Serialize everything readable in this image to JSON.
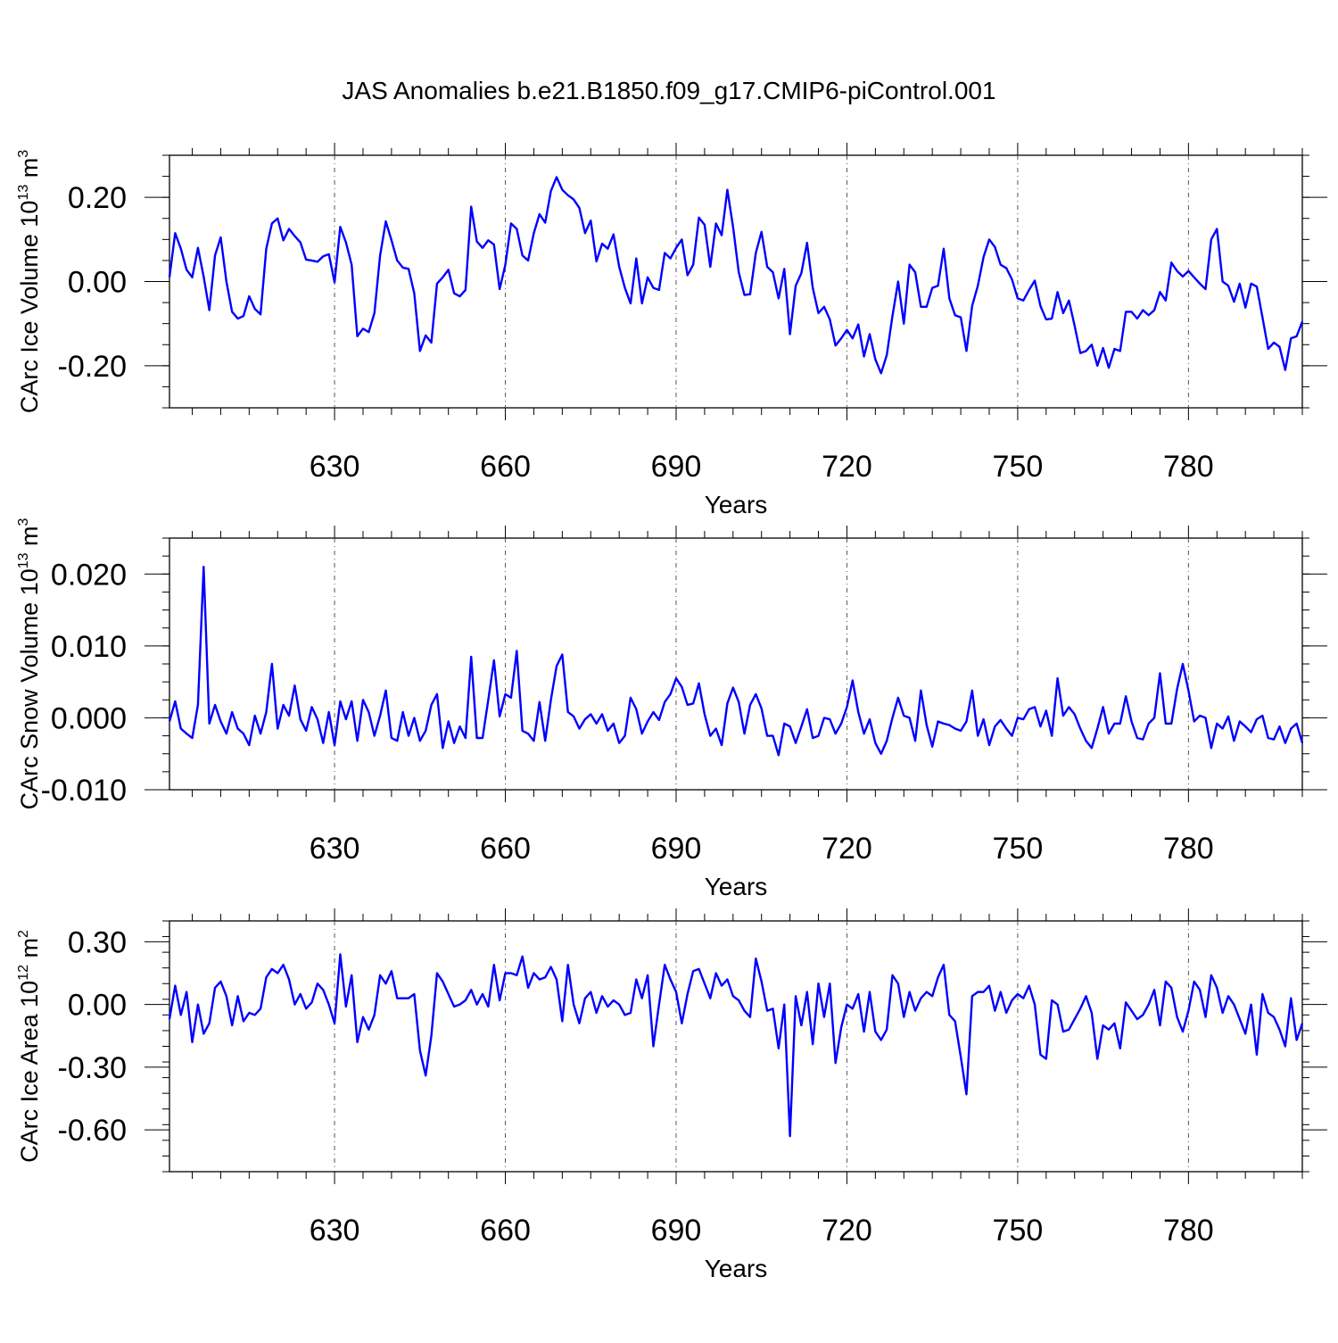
{
  "chart_data": [
    {
      "type": "line",
      "title": "JAS Anomalies b.e21.B1850.f09_g17.CMIP6-piControl.001",
      "ylabel": "CArc Ice Volume 10",
      "ylabel_exp": "13",
      "ylabel_unit": " m",
      "ylabel_unit_exp": "3",
      "xlabel": "Years",
      "x_start": 601,
      "xlim": [
        601,
        800
      ],
      "ylim": [
        -0.3,
        0.3
      ],
      "yticks": [
        -0.2,
        0.0,
        0.2
      ],
      "ytick_labels": [
        "-0.20",
        "0.00",
        "0.20"
      ],
      "xticks": [
        630,
        660,
        690,
        720,
        750,
        780
      ],
      "xtick_labels": [
        "630",
        "660",
        "690",
        "720",
        "750",
        "780"
      ],
      "line_color": "#0000ff",
      "values": [
        0.01,
        0.115,
        0.078,
        0.028,
        0.01,
        0.08,
        0.012,
        -0.068,
        0.062,
        0.105,
        0.0,
        -0.072,
        -0.088,
        -0.082,
        -0.035,
        -0.065,
        -0.078,
        0.078,
        0.138,
        0.15,
        0.098,
        0.125,
        0.108,
        0.093,
        0.052,
        0.05,
        0.047,
        0.06,
        0.065,
        -0.002,
        0.13,
        0.093,
        0.04,
        -0.13,
        -0.112,
        -0.12,
        -0.075,
        0.062,
        0.143,
        0.098,
        0.05,
        0.033,
        0.03,
        -0.028,
        -0.165,
        -0.128,
        -0.145,
        -0.005,
        0.01,
        0.028,
        -0.028,
        -0.035,
        -0.02,
        0.178,
        0.095,
        0.08,
        0.098,
        0.088,
        -0.018,
        0.04,
        0.138,
        0.125,
        0.062,
        0.05,
        0.115,
        0.16,
        0.14,
        0.215,
        0.248,
        0.218,
        0.205,
        0.195,
        0.175,
        0.115,
        0.145,
        0.048,
        0.09,
        0.078,
        0.112,
        0.035,
        -0.015,
        -0.052,
        0.055,
        -0.052,
        0.01,
        -0.015,
        -0.02,
        0.068,
        0.055,
        0.08,
        0.1,
        0.015,
        0.04,
        0.152,
        0.135,
        0.035,
        0.138,
        0.11,
        0.218,
        0.13,
        0.022,
        -0.032,
        -0.03,
        0.068,
        0.118,
        0.035,
        0.022,
        -0.04,
        0.03,
        -0.125,
        -0.01,
        0.02,
        0.092,
        -0.015,
        -0.075,
        -0.06,
        -0.09,
        -0.152,
        -0.135,
        -0.115,
        -0.135,
        -0.102,
        -0.178,
        -0.125,
        -0.185,
        -0.218,
        -0.175,
        -0.082,
        0.0,
        -0.1,
        0.04,
        0.022,
        -0.06,
        -0.06,
        -0.015,
        -0.01,
        0.078,
        -0.04,
        -0.08,
        -0.085,
        -0.165,
        -0.058,
        -0.01,
        0.058,
        0.1,
        0.082,
        0.04,
        0.032,
        0.005,
        -0.04,
        -0.045,
        -0.02,
        0.002,
        -0.058,
        -0.09,
        -0.088,
        -0.025,
        -0.075,
        -0.045,
        -0.105,
        -0.17,
        -0.165,
        -0.15,
        -0.2,
        -0.158,
        -0.205,
        -0.16,
        -0.165,
        -0.072,
        -0.072,
        -0.088,
        -0.068,
        -0.08,
        -0.068,
        -0.025,
        -0.045,
        0.045,
        0.025,
        0.012,
        0.025,
        0.01,
        -0.005,
        -0.018,
        0.1,
        0.125,
        0.0,
        -0.01,
        -0.048,
        -0.005,
        -0.062,
        -0.005,
        -0.012,
        -0.085,
        -0.16,
        -0.145,
        -0.155,
        -0.21,
        -0.135,
        -0.13,
        -0.095
      ]
    },
    {
      "type": "line",
      "ylabel": "CArc Snow Volume 10",
      "ylabel_exp": "13",
      "ylabel_unit": " m",
      "ylabel_unit_exp": "3",
      "xlabel": "Years",
      "x_start": 601,
      "xlim": [
        601,
        800
      ],
      "ylim": [
        -0.01,
        0.025
      ],
      "yticks": [
        -0.01,
        0.0,
        0.01,
        0.02
      ],
      "ytick_labels": [
        "-0.010",
        "0.000",
        "0.010",
        "0.020"
      ],
      "xticks": [
        630,
        660,
        690,
        720,
        750,
        780
      ],
      "xtick_labels": [
        "630",
        "660",
        "690",
        "720",
        "750",
        "780"
      ],
      "line_color": "#0000ff",
      "values": [
        -0.0005,
        0.0023,
        -0.0015,
        -0.0022,
        -0.0028,
        0.0018,
        0.021,
        -0.0008,
        0.0018,
        -0.0005,
        -0.0022,
        0.0008,
        -0.0015,
        -0.0022,
        -0.0038,
        0.0003,
        -0.0022,
        0.0008,
        0.0075,
        -0.0015,
        0.0018,
        0.0003,
        0.0045,
        -0.0002,
        -0.0018,
        0.0015,
        -0.0002,
        -0.0035,
        0.0008,
        -0.0038,
        0.0023,
        -0.0002,
        0.0023,
        -0.0032,
        0.0025,
        0.0008,
        -0.0025,
        0.0003,
        0.0038,
        -0.0028,
        -0.0032,
        0.0008,
        -0.0025,
        0.0,
        -0.0032,
        -0.0018,
        0.0018,
        0.0033,
        -0.0042,
        -0.0005,
        -0.0035,
        -0.0012,
        -0.0028,
        0.0085,
        -0.0028,
        -0.0028,
        0.0025,
        0.008,
        0.0002,
        0.0033,
        0.0028,
        0.0093,
        -0.0018,
        -0.0022,
        -0.0032,
        0.0022,
        -0.0032,
        0.0025,
        0.0072,
        0.0088,
        0.0008,
        0.0002,
        -0.0015,
        -0.0002,
        0.0005,
        -0.0008,
        0.0005,
        -0.0018,
        -0.0008,
        -0.0035,
        -0.0025,
        0.0028,
        0.0012,
        -0.0022,
        -0.0005,
        0.0008,
        -0.0003,
        0.0022,
        0.0033,
        0.0055,
        0.0043,
        0.0018,
        0.002,
        0.0048,
        0.0005,
        -0.0025,
        -0.0015,
        -0.0038,
        0.002,
        0.0042,
        0.0022,
        -0.0022,
        0.0018,
        0.0033,
        0.0013,
        -0.0025,
        -0.0025,
        -0.0052,
        -0.0008,
        -0.0012,
        -0.0035,
        -0.0012,
        0.0012,
        -0.0028,
        -0.0025,
        0.0,
        -0.0002,
        -0.0022,
        -0.0008,
        0.0015,
        0.0052,
        0.0008,
        -0.0022,
        -0.0002,
        -0.0035,
        -0.005,
        -0.0032,
        0.0,
        0.0028,
        0.0003,
        0.0,
        -0.0032,
        0.0038,
        -0.001,
        -0.004,
        -0.0005,
        -0.0008,
        -0.001,
        -0.0015,
        -0.0018,
        -0.0005,
        0.0038,
        -0.0025,
        -0.0002,
        -0.0038,
        -0.0012,
        -0.0003,
        -0.0015,
        -0.0025,
        0.0,
        -0.0002,
        0.0012,
        0.0015,
        -0.0012,
        0.001,
        -0.0025,
        0.0055,
        0.0003,
        0.0015,
        0.0005,
        -0.0015,
        -0.0032,
        -0.0042,
        -0.0015,
        0.0015,
        -0.0022,
        -0.0008,
        -0.0008,
        0.003,
        -0.0005,
        -0.0028,
        -0.003,
        -0.0008,
        0.0,
        0.0062,
        -0.0008,
        -0.0008,
        0.004,
        0.0075,
        0.0038,
        -0.0005,
        0.0003,
        0.0,
        -0.0042,
        -0.0008,
        -0.0015,
        0.0002,
        -0.0032,
        -0.0005,
        -0.0012,
        -0.002,
        -0.0002,
        0.0003,
        -0.0028,
        -0.003,
        -0.0012,
        -0.0035,
        -0.0015,
        -0.0008,
        -0.0035
      ]
    },
    {
      "type": "line",
      "ylabel": "CArc Ice Area 10",
      "ylabel_exp": "12",
      "ylabel_unit": " m",
      "ylabel_unit_exp": "2",
      "xlabel": "Years",
      "x_start": 601,
      "xlim": [
        601,
        800
      ],
      "ylim": [
        -0.8,
        0.4
      ],
      "yticks": [
        -0.6,
        -0.3,
        0.0,
        0.3
      ],
      "ytick_labels": [
        "-0.60",
        "-0.30",
        "0.00",
        "0.30"
      ],
      "xticks": [
        630,
        660,
        690,
        720,
        750,
        780
      ],
      "xtick_labels": [
        "630",
        "660",
        "690",
        "720",
        "750",
        "780"
      ],
      "line_color": "#0000ff",
      "values": [
        -0.07,
        0.09,
        -0.05,
        0.06,
        -0.18,
        0.0,
        -0.14,
        -0.09,
        0.08,
        0.11,
        0.04,
        -0.1,
        0.04,
        -0.08,
        -0.04,
        -0.05,
        -0.02,
        0.13,
        0.17,
        0.15,
        0.19,
        0.12,
        0.0,
        0.05,
        -0.02,
        0.01,
        0.1,
        0.07,
        0.0,
        -0.09,
        0.24,
        -0.01,
        0.14,
        -0.18,
        -0.06,
        -0.12,
        -0.05,
        0.14,
        0.1,
        0.16,
        0.03,
        0.03,
        0.03,
        0.05,
        -0.22,
        -0.34,
        -0.15,
        0.15,
        0.11,
        0.05,
        -0.01,
        0.0,
        0.02,
        0.07,
        0.0,
        0.05,
        -0.01,
        0.19,
        0.02,
        0.15,
        0.15,
        0.14,
        0.23,
        0.08,
        0.15,
        0.12,
        0.13,
        0.18,
        0.12,
        -0.08,
        0.19,
        0.0,
        -0.09,
        0.03,
        0.06,
        -0.04,
        0.04,
        -0.01,
        0.02,
        0.0,
        -0.05,
        -0.04,
        0.12,
        0.03,
        0.14,
        -0.2,
        0.0,
        0.19,
        0.12,
        0.06,
        -0.09,
        0.05,
        0.16,
        0.17,
        0.1,
        0.03,
        0.15,
        0.09,
        0.12,
        0.04,
        0.02,
        -0.03,
        -0.06,
        0.22,
        0.11,
        -0.03,
        -0.02,
        -0.21,
        0.0,
        -0.63,
        0.04,
        -0.1,
        0.06,
        -0.19,
        0.1,
        -0.06,
        0.1,
        -0.28,
        -0.11,
        0.0,
        -0.02,
        0.05,
        -0.13,
        0.06,
        -0.13,
        -0.17,
        -0.12,
        0.14,
        0.1,
        -0.06,
        0.06,
        -0.03,
        0.03,
        0.06,
        0.04,
        0.13,
        0.19,
        -0.05,
        -0.08,
        -0.25,
        -0.43,
        0.04,
        0.06,
        0.06,
        0.09,
        -0.03,
        0.06,
        -0.04,
        0.02,
        0.05,
        0.03,
        0.09,
        0.0,
        -0.24,
        -0.26,
        0.02,
        0.0,
        -0.13,
        -0.12,
        -0.07,
        -0.02,
        0.04,
        -0.04,
        -0.26,
        -0.1,
        -0.12,
        -0.09,
        -0.21,
        0.01,
        -0.03,
        -0.07,
        -0.05,
        0.0,
        0.07,
        -0.1,
        0.11,
        0.08,
        -0.06,
        -0.13,
        -0.03,
        0.11,
        0.07,
        -0.06,
        0.14,
        0.08,
        -0.04,
        0.04,
        0.0,
        -0.07,
        -0.14,
        0.0,
        -0.24,
        0.05,
        -0.04,
        -0.06,
        -0.12,
        -0.2,
        0.03,
        -0.17,
        -0.09
      ]
    }
  ]
}
